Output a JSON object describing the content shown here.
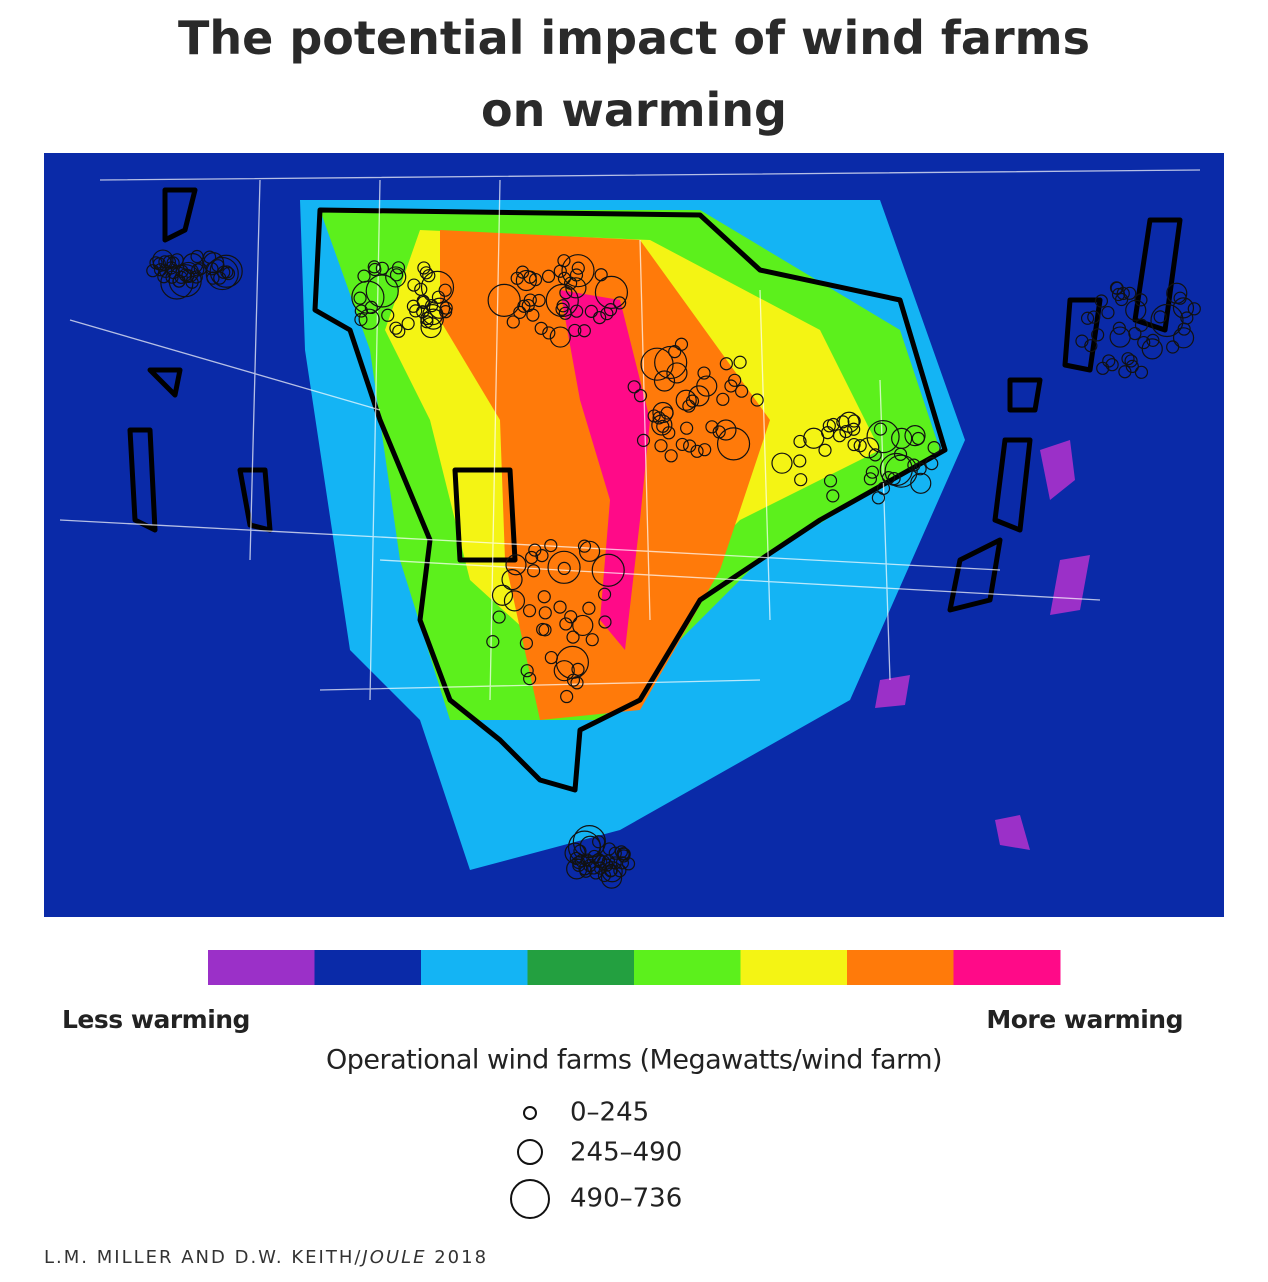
{
  "title": "The potential impact of wind farms on warming",
  "colorbar": {
    "colors": [
      "#9b30c8",
      "#0a2aa8",
      "#14b4f4",
      "#23a040",
      "#5cf01c",
      "#f4f414",
      "#ff7a0a",
      "#ff0a88"
    ],
    "low_label": "Less warming",
    "high_label": "More warming"
  },
  "size_legend": {
    "title": "Operational wind farms (Megawatts/wind farm)",
    "entries": [
      "0–245",
      "245–490",
      "490–736"
    ]
  },
  "credit": {
    "authors": "L.M. MILLER AND D.W. KEITH/",
    "journal": "JOULE",
    "year": " 2018"
  }
}
